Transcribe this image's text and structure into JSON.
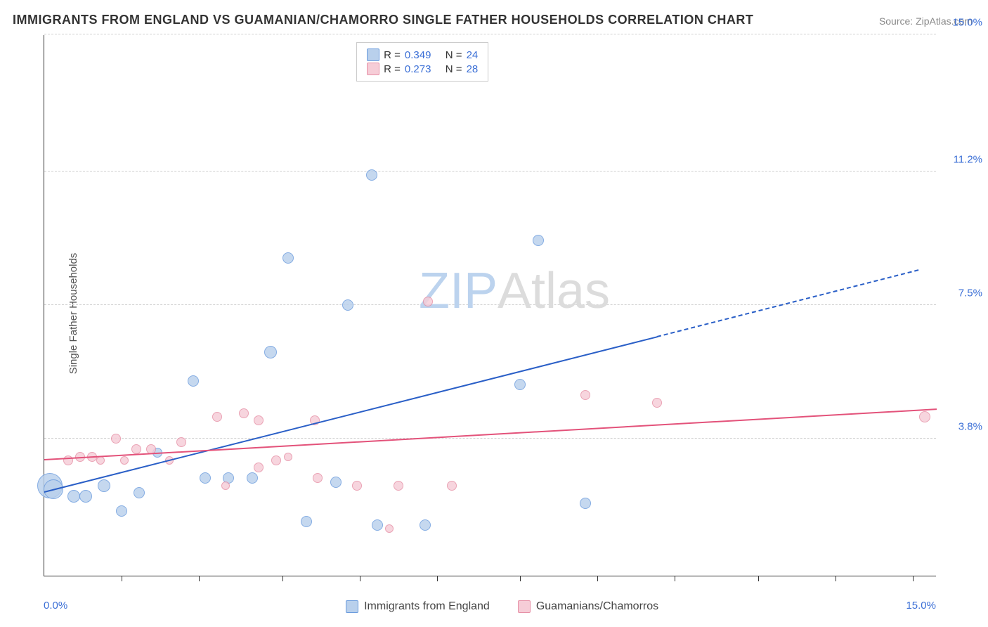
{
  "title": "IMMIGRANTS FROM ENGLAND VS GUAMANIAN/CHAMORRO SINGLE FATHER HOUSEHOLDS CORRELATION CHART",
  "source": "Source: ZipAtlas.com",
  "ylabel": "Single Father Households",
  "watermark_a": "ZIP",
  "watermark_b": "Atlas",
  "chart": {
    "type": "scatter",
    "xlim": [
      0,
      15
    ],
    "ylim": [
      0,
      15
    ],
    "x_axis_labels": {
      "left": "0.0%",
      "right": "15.0%"
    },
    "y_ticks": [
      {
        "v": 3.8,
        "label": "3.8%"
      },
      {
        "v": 7.5,
        "label": "7.5%"
      },
      {
        "v": 11.2,
        "label": "11.2%"
      },
      {
        "v": 15.0,
        "label": "15.0%"
      }
    ],
    "x_minor_ticks": [
      1.3,
      2.6,
      4.0,
      5.3,
      6.6,
      8.0,
      9.3,
      10.6,
      12.0,
      13.3,
      14.6
    ],
    "background_color": "#ffffff",
    "grid_color": "#d0d0d0",
    "series": [
      {
        "name": "Immigrants from England",
        "fill": "#b9d0ec",
        "stroke": "#6a9bdd",
        "trend_color": "#2a5fc7",
        "R": "0.349",
        "N": "24",
        "trend": {
          "x1": 0.0,
          "y1": 2.3,
          "x2": 10.3,
          "y2": 6.6,
          "x2d": 14.7,
          "y2d": 8.45
        },
        "points": [
          {
            "x": 0.1,
            "y": 2.5,
            "r": 18
          },
          {
            "x": 0.15,
            "y": 2.4,
            "r": 14
          },
          {
            "x": 0.5,
            "y": 2.2,
            "r": 9
          },
          {
            "x": 0.7,
            "y": 2.2,
            "r": 9
          },
          {
            "x": 1.0,
            "y": 2.5,
            "r": 9
          },
          {
            "x": 1.3,
            "y": 1.8,
            "r": 8
          },
          {
            "x": 1.6,
            "y": 2.3,
            "r": 8
          },
          {
            "x": 1.9,
            "y": 3.4,
            "r": 7
          },
          {
            "x": 2.5,
            "y": 5.4,
            "r": 8
          },
          {
            "x": 2.7,
            "y": 2.7,
            "r": 8
          },
          {
            "x": 3.1,
            "y": 2.7,
            "r": 8
          },
          {
            "x": 3.5,
            "y": 2.7,
            "r": 8
          },
          {
            "x": 3.8,
            "y": 6.2,
            "r": 9
          },
          {
            "x": 4.1,
            "y": 8.8,
            "r": 8
          },
          {
            "x": 4.4,
            "y": 1.5,
            "r": 8
          },
          {
            "x": 4.9,
            "y": 2.6,
            "r": 8
          },
          {
            "x": 5.1,
            "y": 7.5,
            "r": 8
          },
          {
            "x": 5.5,
            "y": 11.1,
            "r": 8
          },
          {
            "x": 5.6,
            "y": 1.4,
            "r": 8
          },
          {
            "x": 6.4,
            "y": 1.4,
            "r": 8
          },
          {
            "x": 8.0,
            "y": 5.3,
            "r": 8
          },
          {
            "x": 8.3,
            "y": 9.3,
            "r": 8
          },
          {
            "x": 9.1,
            "y": 2.0,
            "r": 8
          }
        ]
      },
      {
        "name": "Guamanians/Chamorros",
        "fill": "#f6cdd7",
        "stroke": "#e690a6",
        "trend_color": "#e3527a",
        "R": "0.273",
        "N": "28",
        "trend": {
          "x1": 0.0,
          "y1": 3.2,
          "x2": 15.0,
          "y2": 4.6
        },
        "points": [
          {
            "x": 0.4,
            "y": 3.2,
            "r": 7
          },
          {
            "x": 0.6,
            "y": 3.3,
            "r": 7
          },
          {
            "x": 0.8,
            "y": 3.3,
            "r": 7
          },
          {
            "x": 0.95,
            "y": 3.2,
            "r": 6
          },
          {
            "x": 1.2,
            "y": 3.8,
            "r": 7
          },
          {
            "x": 1.35,
            "y": 3.2,
            "r": 6
          },
          {
            "x": 1.55,
            "y": 3.5,
            "r": 7
          },
          {
            "x": 1.8,
            "y": 3.5,
            "r": 7
          },
          {
            "x": 2.1,
            "y": 3.2,
            "r": 6
          },
          {
            "x": 2.3,
            "y": 3.7,
            "r": 7
          },
          {
            "x": 2.9,
            "y": 4.4,
            "r": 7
          },
          {
            "x": 3.05,
            "y": 2.5,
            "r": 6
          },
          {
            "x": 3.35,
            "y": 4.5,
            "r": 7
          },
          {
            "x": 3.6,
            "y": 3.0,
            "r": 7
          },
          {
            "x": 3.6,
            "y": 4.3,
            "r": 7
          },
          {
            "x": 3.9,
            "y": 3.2,
            "r": 7
          },
          {
            "x": 4.1,
            "y": 3.3,
            "r": 6
          },
          {
            "x": 4.55,
            "y": 4.3,
            "r": 7
          },
          {
            "x": 4.6,
            "y": 2.7,
            "r": 7
          },
          {
            "x": 5.25,
            "y": 2.5,
            "r": 7
          },
          {
            "x": 5.8,
            "y": 1.3,
            "r": 6
          },
          {
            "x": 5.95,
            "y": 2.5,
            "r": 7
          },
          {
            "x": 6.45,
            "y": 7.6,
            "r": 7
          },
          {
            "x": 6.85,
            "y": 2.5,
            "r": 7
          },
          {
            "x": 9.1,
            "y": 5.0,
            "r": 7
          },
          {
            "x": 10.3,
            "y": 4.8,
            "r": 7
          },
          {
            "x": 14.8,
            "y": 4.4,
            "r": 8
          }
        ]
      }
    ]
  },
  "legend_top": {
    "r_label": "R =",
    "n_label": "N ="
  },
  "legend_bottom": [
    {
      "key": "eng",
      "label": "Immigrants from England"
    },
    {
      "key": "guam",
      "label": "Guamanians/Chamorros"
    }
  ]
}
